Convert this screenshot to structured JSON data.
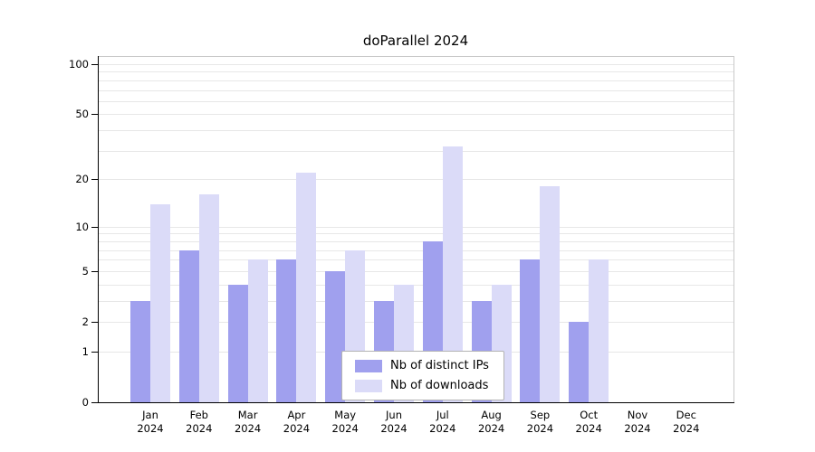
{
  "title": "doParallel 2024",
  "legend": {
    "items": [
      {
        "label": "Nb of distinct IPs",
        "color": "#a0a0ee"
      },
      {
        "label": "Nb of downloads",
        "color": "#dbdbf8"
      }
    ]
  },
  "chart_data": {
    "type": "bar",
    "title": "doParallel 2024",
    "categories": [
      "Jan",
      "Feb",
      "Mar",
      "Apr",
      "May",
      "Jun",
      "Jul",
      "Aug",
      "Sep",
      "Oct",
      "Nov",
      "Dec"
    ],
    "year": "2024",
    "series": [
      {
        "name": "Nb of distinct IPs",
        "color": "#a0a0ee",
        "values": [
          3,
          7,
          4,
          6,
          5,
          3,
          8,
          3,
          6,
          2,
          0,
          0
        ]
      },
      {
        "name": "Nb of downloads",
        "color": "#dbdbf8",
        "values": [
          14,
          16,
          6,
          22,
          7,
          4,
          32,
          4,
          18,
          6,
          0,
          0
        ]
      }
    ],
    "scale": "log1p",
    "ylim": [
      0,
      112
    ],
    "y_ticks": [
      0,
      1,
      2,
      5,
      10,
      20,
      50,
      100
    ],
    "grid_values": [
      1,
      2,
      3,
      4,
      5,
      6,
      7,
      8,
      9,
      10,
      20,
      30,
      40,
      50,
      60,
      70,
      80,
      90,
      100
    ],
    "grid": true,
    "legend_position": "bottom-center-inside",
    "xlabel": "",
    "ylabel": ""
  }
}
